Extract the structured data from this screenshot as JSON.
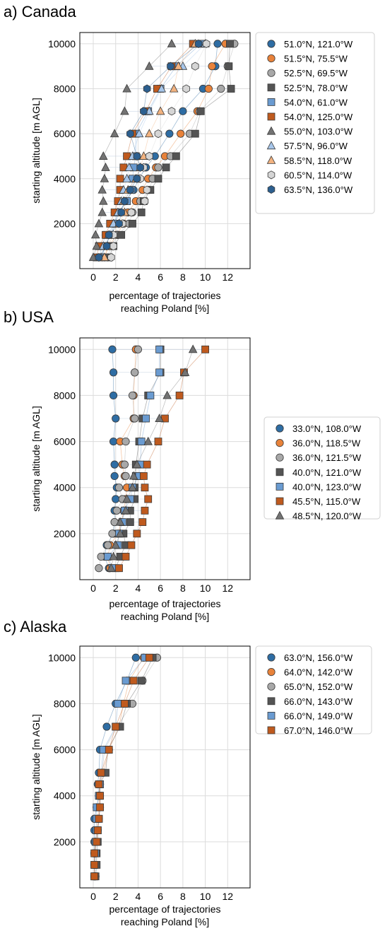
{
  "colors": {
    "blue_dark": "#2e6da4",
    "orange": "#e8823a",
    "gray_light": "#a8a8a8",
    "gray_dark": "#545454",
    "blue_light": "#6a9bd1",
    "rust": "#bf5a1e",
    "tri_dark": "#737373",
    "tri_light_blue": "#a7c6ea",
    "tri_peach": "#f2b27f",
    "hex_light": "#d5d5d5",
    "hex_blue": "#2c5f8f",
    "grid": "#dcdcdc"
  },
  "chart_data": [
    {
      "type": "scatter",
      "title": "a) Canada",
      "xlabel_line1": "percentage of trajectories",
      "xlabel_line2": "reaching Poland [%]",
      "ylabel": "starting altitude [m AGL]",
      "xlim": [
        -1.2,
        14
      ],
      "ylim": [
        0,
        10500
      ],
      "xticks": [
        0,
        2,
        4,
        6,
        8,
        10,
        12
      ],
      "yticks": [
        2000,
        4000,
        6000,
        8000,
        10000
      ],
      "grid": true,
      "legend_position": "right",
      "altitudes": [
        500,
        1000,
        1500,
        2000,
        2500,
        3000,
        3500,
        4000,
        4500,
        5000,
        6000,
        7000,
        8000,
        9000,
        10000
      ],
      "series": [
        {
          "name": "51.0°N, 121.0°W",
          "marker": "circle",
          "color": "#2e6da4",
          "values": [
            0.8,
            1.0,
            1.6,
            1.9,
            2.3,
            2.9,
            3.6,
            4.1,
            4.7,
            5.5,
            6.8,
            8.0,
            9.8,
            10.9,
            11.1
          ]
        },
        {
          "name": "51.5°N, 75.5°W",
          "marker": "circle",
          "color": "#e8823a",
          "values": [
            1.0,
            1.4,
            2.1,
            2.7,
            3.1,
            3.8,
            4.4,
            4.9,
            5.6,
            6.4,
            7.8,
            9.3,
            10.3,
            10.6,
            11.8
          ]
        },
        {
          "name": "52.5°N, 69.5°W",
          "marker": "circle",
          "color": "#a8a8a8",
          "values": [
            1.3,
            1.6,
            2.2,
            3.2,
            3.5,
            4.2,
            5.0,
            5.3,
            5.8,
            6.9,
            8.6,
            9.5,
            11.4,
            12.0,
            12.6
          ]
        },
        {
          "name": "52.5°N, 78.0°W",
          "marker": "square",
          "color": "#545454",
          "values": [
            1.4,
            1.8,
            2.5,
            3.5,
            4.3,
            4.5,
            5.1,
            5.8,
            6.5,
            7.4,
            9.1,
            9.6,
            12.3,
            12.1,
            12.2
          ]
        },
        {
          "name": "54.0°N, 61.0°W",
          "marker": "square",
          "color": "#6a9bd1",
          "values": [
            0.6,
            0.7,
            1.2,
            2.0,
            2.2,
            3.0,
            3.4,
            3.5,
            3.6,
            3.8,
            3.8,
            4.9,
            6.0,
            7.4,
            9.6
          ]
        },
        {
          "name": "54.0°N, 125.0°W",
          "marker": "square",
          "color": "#bf5a1e",
          "values": [
            0.3,
            0.5,
            1.1,
            1.5,
            1.9,
            2.2,
            2.4,
            2.4,
            2.7,
            3.0,
            3.5,
            4.7,
            5.7,
            7.0,
            8.9
          ]
        },
        {
          "name": "55.0°N, 103.0°W",
          "marker": "triangle",
          "color": "#737373",
          "values": [
            0.0,
            0.3,
            0.2,
            0.5,
            0.8,
            0.9,
            0.8,
            1.0,
            1.1,
            0.9,
            1.9,
            2.8,
            3.0,
            5.0,
            7.0
          ]
        },
        {
          "name": "57.5°N, 96.0°W",
          "marker": "triangle",
          "color": "#a7c6ea",
          "values": [
            0.7,
            0.9,
            1.4,
            1.8,
            2.2,
            2.5,
            2.7,
            3.0,
            3.2,
            3.5,
            4.1,
            5.0,
            6.1,
            8.0,
            10.0
          ]
        },
        {
          "name": "58.5°N, 118.0°W",
          "marker": "triangle",
          "color": "#f2b27f",
          "values": [
            1.0,
            1.3,
            1.8,
            2.3,
            2.8,
            2.7,
            3.1,
            3.8,
            4.2,
            4.5,
            5.0,
            6.0,
            7.2,
            7.6,
            9.1
          ]
        },
        {
          "name": "60.5°N, 114.0°W",
          "marker": "hexagon",
          "color": "#d5d5d5",
          "values": [
            1.6,
            1.8,
            1.8,
            2.6,
            3.4,
            4.6,
            4.8,
            4.2,
            4.5,
            5.0,
            5.8,
            7.0,
            8.3,
            9.1,
            10.1
          ]
        },
        {
          "name": "63.5°N, 136.0°W",
          "marker": "hexagon",
          "color": "#2c5f8f",
          "values": [
            0.5,
            1.2,
            1.4,
            2.3,
            2.5,
            2.8,
            3.3,
            3.9,
            4.2,
            3.9,
            3.3,
            4.5,
            4.8,
            6.9,
            9.4
          ]
        }
      ]
    },
    {
      "type": "scatter",
      "title": "b) USA",
      "xlabel_line1": "percentage of trajectories",
      "xlabel_line2": "reaching Poland [%]",
      "ylabel": "starting altitude [m AGL]",
      "xlim": [
        -1.2,
        14
      ],
      "ylim": [
        0,
        10500
      ],
      "xticks": [
        0,
        2,
        4,
        6,
        8,
        10,
        12
      ],
      "yticks": [
        2000,
        4000,
        6000,
        8000,
        10000
      ],
      "grid": true,
      "legend_position": "right",
      "altitudes": [
        500,
        1000,
        1500,
        2000,
        2500,
        3000,
        3500,
        4000,
        4500,
        5000,
        6000,
        7000,
        8000,
        9000,
        10000
      ],
      "series": [
        {
          "name": "33.0°N, 108.0°W",
          "marker": "circle",
          "color": "#2e6da4",
          "values": [
            1.4,
            1.0,
            1.2,
            1.8,
            1.9,
            1.9,
            2.0,
            2.1,
            1.9,
            1.9,
            1.8,
            2.0,
            1.8,
            1.8,
            1.7
          ]
        },
        {
          "name": "36.0°N, 118.5°W",
          "marker": "circle",
          "color": "#e8823a",
          "values": [
            1.5,
            1.3,
            1.5,
            2.2,
            2.5,
            2.7,
            2.9,
            3.0,
            2.8,
            2.6,
            2.4,
            3.6,
            3.6,
            3.7,
            3.8
          ]
        },
        {
          "name": "36.0°N, 121.5°W",
          "marker": "circle",
          "color": "#a8a8a8",
          "values": [
            0.5,
            0.7,
            1.3,
            1.7,
            1.9,
            2.1,
            2.6,
            2.3,
            2.9,
            2.8,
            2.9,
            3.7,
            3.5,
            3.7,
            4.0
          ]
        },
        {
          "name": "40.0°N, 121.0°W",
          "marker": "square",
          "color": "#545454",
          "values": [
            2.0,
            2.4,
            2.9,
            2.7,
            3.3,
            3.3,
            3.7,
            3.7,
            3.8,
            3.8,
            4.1,
            4.4,
            4.9,
            6.0,
            6.0
          ]
        },
        {
          "name": "40.0°N, 123.0°W",
          "marker": "square",
          "color": "#6a9bd1",
          "values": [
            1.7,
            1.3,
            2.2,
            2.3,
            2.6,
            2.8,
            3.3,
            3.5,
            4.1,
            4.2,
            4.3,
            4.7,
            5.1,
            5.9,
            5.9
          ]
        },
        {
          "name": "45.5°N, 115.0°W",
          "marker": "square",
          "color": "#bf5a1e",
          "values": [
            2.3,
            2.9,
            3.4,
            3.9,
            4.4,
            4.6,
            4.9,
            4.6,
            4.5,
            4.8,
            5.8,
            6.4,
            7.7,
            8.1,
            10.0
          ]
        },
        {
          "name": "48.5°N, 120.0°W",
          "marker": "triangle",
          "color": "#737373",
          "values": [
            1.6,
            1.8,
            2.0,
            2.4,
            2.4,
            2.9,
            3.0,
            3.5,
            3.6,
            3.9,
            4.9,
            5.9,
            6.6,
            8.2,
            8.9
          ]
        }
      ]
    },
    {
      "type": "scatter",
      "title": "c) Alaska",
      "xlabel_line1": "percentage of trajectories",
      "xlabel_line2": "reaching Poland [%]",
      "ylabel": "starting altitude [m AGL]",
      "xlim": [
        -1.2,
        14
      ],
      "ylim": [
        0,
        10500
      ],
      "xticks": [
        0,
        2,
        4,
        6,
        8,
        10,
        12
      ],
      "yticks": [
        2000,
        4000,
        6000,
        8000,
        10000
      ],
      "grid": true,
      "legend_position": "right",
      "altitudes": [
        500,
        1000,
        1500,
        2000,
        2500,
        3000,
        3500,
        4000,
        4500,
        5000,
        6000,
        7000,
        8000,
        9000,
        10000
      ],
      "series": [
        {
          "name": "63.0°N, 156.0°W",
          "marker": "circle",
          "color": "#2e6da4",
          "values": [
            0.1,
            0.1,
            0.1,
            0.1,
            0.1,
            0.1,
            0.3,
            0.5,
            0.4,
            0.5,
            0.6,
            1.2,
            2.0,
            3.0,
            3.8
          ]
        },
        {
          "name": "64.0°N, 142.0°W",
          "marker": "circle",
          "color": "#e8823a",
          "values": [
            0.1,
            0.1,
            0.1,
            0.2,
            0.3,
            0.4,
            0.5,
            0.5,
            0.6,
            0.9,
            1.4,
            2.3,
            2.7,
            3.2,
            4.5
          ]
        },
        {
          "name": "65.0°N, 152.0°W",
          "marker": "circle",
          "color": "#a8a8a8",
          "values": [
            0.2,
            0.2,
            0.2,
            0.2,
            0.4,
            0.5,
            0.6,
            0.6,
            0.6,
            0.8,
            1.0,
            2.1,
            3.5,
            4.4,
            5.7
          ]
        },
        {
          "name": "66.0°N, 143.0°W",
          "marker": "square",
          "color": "#545454",
          "values": [
            0.2,
            0.3,
            0.3,
            0.4,
            0.4,
            0.5,
            0.6,
            0.6,
            0.6,
            1.1,
            1.3,
            2.4,
            3.0,
            4.3,
            5.3
          ]
        },
        {
          "name": "66.0°N, 149.0°W",
          "marker": "square",
          "color": "#6a9bd1",
          "values": [
            0.1,
            0.1,
            0.2,
            0.2,
            0.3,
            0.3,
            0.3,
            0.5,
            0.6,
            0.7,
            0.9,
            2.0,
            2.2,
            2.9,
            4.6
          ]
        },
        {
          "name": "67.0°N, 146.0°W",
          "marker": "square",
          "color": "#bf5a1e",
          "values": [
            0.1,
            0.1,
            0.1,
            0.3,
            0.4,
            0.5,
            0.6,
            0.6,
            0.5,
            0.7,
            1.4,
            2.0,
            2.8,
            3.6,
            5.0
          ]
        }
      ]
    }
  ]
}
